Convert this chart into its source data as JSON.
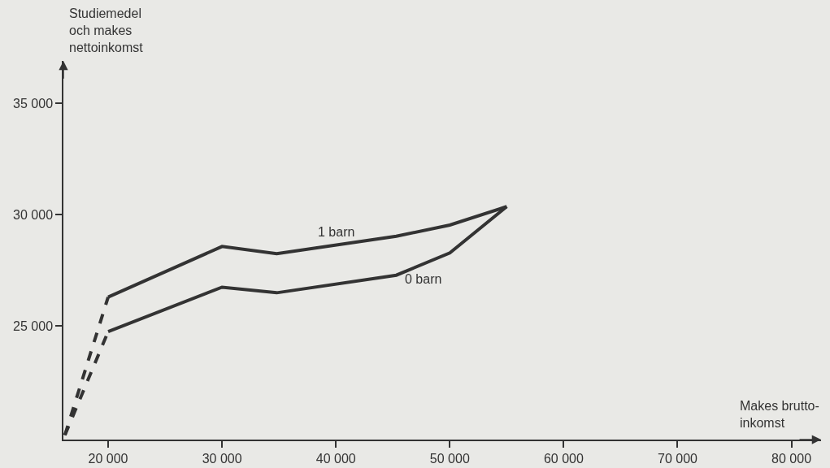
{
  "chart_data": {
    "type": "line",
    "xlabel": "Makes brutto-\ninkomst",
    "ylabel": "Studiemedel\noch makes\nnettoinkomst",
    "xlim": [
      16070,
      82600
    ],
    "ylim": [
      19900,
      36900
    ],
    "xticks": [
      {
        "value": 20000,
        "label": "20 000"
      },
      {
        "value": 30000,
        "label": "30 000"
      },
      {
        "value": 40000,
        "label": "40 000"
      },
      {
        "value": 50000,
        "label": "50 000"
      },
      {
        "value": 60000,
        "label": "60 000"
      },
      {
        "value": 70000,
        "label": "70 000"
      },
      {
        "value": 80000,
        "label": "80 000"
      }
    ],
    "yticks": [
      {
        "value": 25000,
        "label": "25 000"
      },
      {
        "value": 30000,
        "label": "30 000"
      },
      {
        "value": 35000,
        "label": "35 000"
      }
    ],
    "grid": false,
    "legend": false,
    "marker": "none",
    "series": [
      {
        "name": "1 barn",
        "color": "#333333",
        "line_style": "solid",
        "x": [
          20000,
          30000,
          34800,
          45300,
          50000,
          55000
        ],
        "values": [
          26300,
          28570,
          28250,
          29030,
          29530,
          30360
        ]
      },
      {
        "name": "0 barn",
        "color": "#333333",
        "line_style": "solid",
        "x": [
          20000,
          30000,
          34800,
          45300,
          50000,
          55000
        ],
        "values": [
          24750,
          26740,
          26490,
          27280,
          28280,
          30360
        ]
      },
      {
        "color": "#333333",
        "line_style": "dashed",
        "x": [
          16200,
          20000
        ],
        "values": [
          20100,
          26300
        ]
      },
      {
        "color": "#333333",
        "line_style": "dashed",
        "x": [
          16200,
          20000
        ],
        "values": [
          20100,
          24750
        ]
      }
    ]
  }
}
